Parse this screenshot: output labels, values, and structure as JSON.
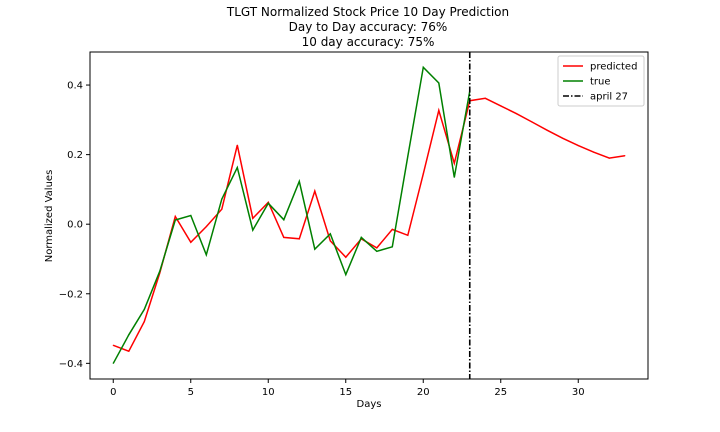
{
  "chart_data": {
    "type": "line",
    "title": [
      "TLGT Normalized Stock Price 10 Day Prediction",
      "Day to Day accuracy: 76%",
      "10 day accuracy: 75%"
    ],
    "xlabel": "Days",
    "ylabel": "Normalized Values",
    "xlim": [
      -1.5,
      34.5
    ],
    "ylim": [
      -0.445,
      0.495
    ],
    "xticks": [
      0,
      5,
      10,
      15,
      20,
      25,
      30
    ],
    "xtick_labels": [
      "0",
      "5",
      "10",
      "15",
      "20",
      "25",
      "30"
    ],
    "yticks": [
      -0.4,
      -0.2,
      0.0,
      0.2,
      0.4
    ],
    "ytick_labels": [
      "−0.4",
      "−0.2",
      "0.0",
      "0.2",
      "0.4"
    ],
    "grid": false,
    "legend_position": "top-right",
    "series": [
      {
        "name": "predicted",
        "color": "#ff0000",
        "style": "solid",
        "x": [
          0,
          1,
          2,
          3,
          4,
          5,
          6,
          7,
          8,
          9,
          10,
          11,
          12,
          13,
          14,
          15,
          16,
          17,
          18,
          19,
          20,
          21,
          22,
          23,
          24,
          25,
          26,
          27,
          28,
          29,
          30,
          31,
          32,
          33
        ],
        "y": [
          -0.348,
          -0.365,
          -0.28,
          -0.14,
          0.022,
          -0.052,
          -0.007,
          0.043,
          0.227,
          0.017,
          0.063,
          -0.038,
          -0.042,
          0.095,
          -0.048,
          -0.095,
          -0.042,
          -0.068,
          -0.015,
          -0.032,
          0.145,
          0.327,
          0.175,
          0.355,
          0.362,
          0.34,
          0.318,
          0.294,
          0.27,
          0.247,
          0.226,
          0.207,
          0.19,
          0.197
        ]
      },
      {
        "name": "true",
        "color": "#008000",
        "style": "solid",
        "x": [
          0,
          1,
          2,
          3,
          4,
          5,
          6,
          7,
          8,
          9,
          10,
          11,
          12,
          13,
          14,
          15,
          16,
          17,
          18,
          19,
          20,
          21,
          22,
          23
        ],
        "y": [
          -0.4,
          -0.318,
          -0.245,
          -0.135,
          0.012,
          0.025,
          -0.088,
          0.072,
          0.163,
          -0.017,
          0.06,
          0.013,
          0.123,
          -0.072,
          -0.028,
          -0.145,
          -0.038,
          -0.078,
          -0.065,
          0.195,
          0.451,
          0.406,
          0.135,
          0.383
        ]
      }
    ],
    "vlines": [
      {
        "name": "april 27",
        "x": 23,
        "color": "#000000",
        "style": "dashdot"
      }
    ],
    "legend": [
      "predicted",
      "true",
      "april 27"
    ]
  }
}
